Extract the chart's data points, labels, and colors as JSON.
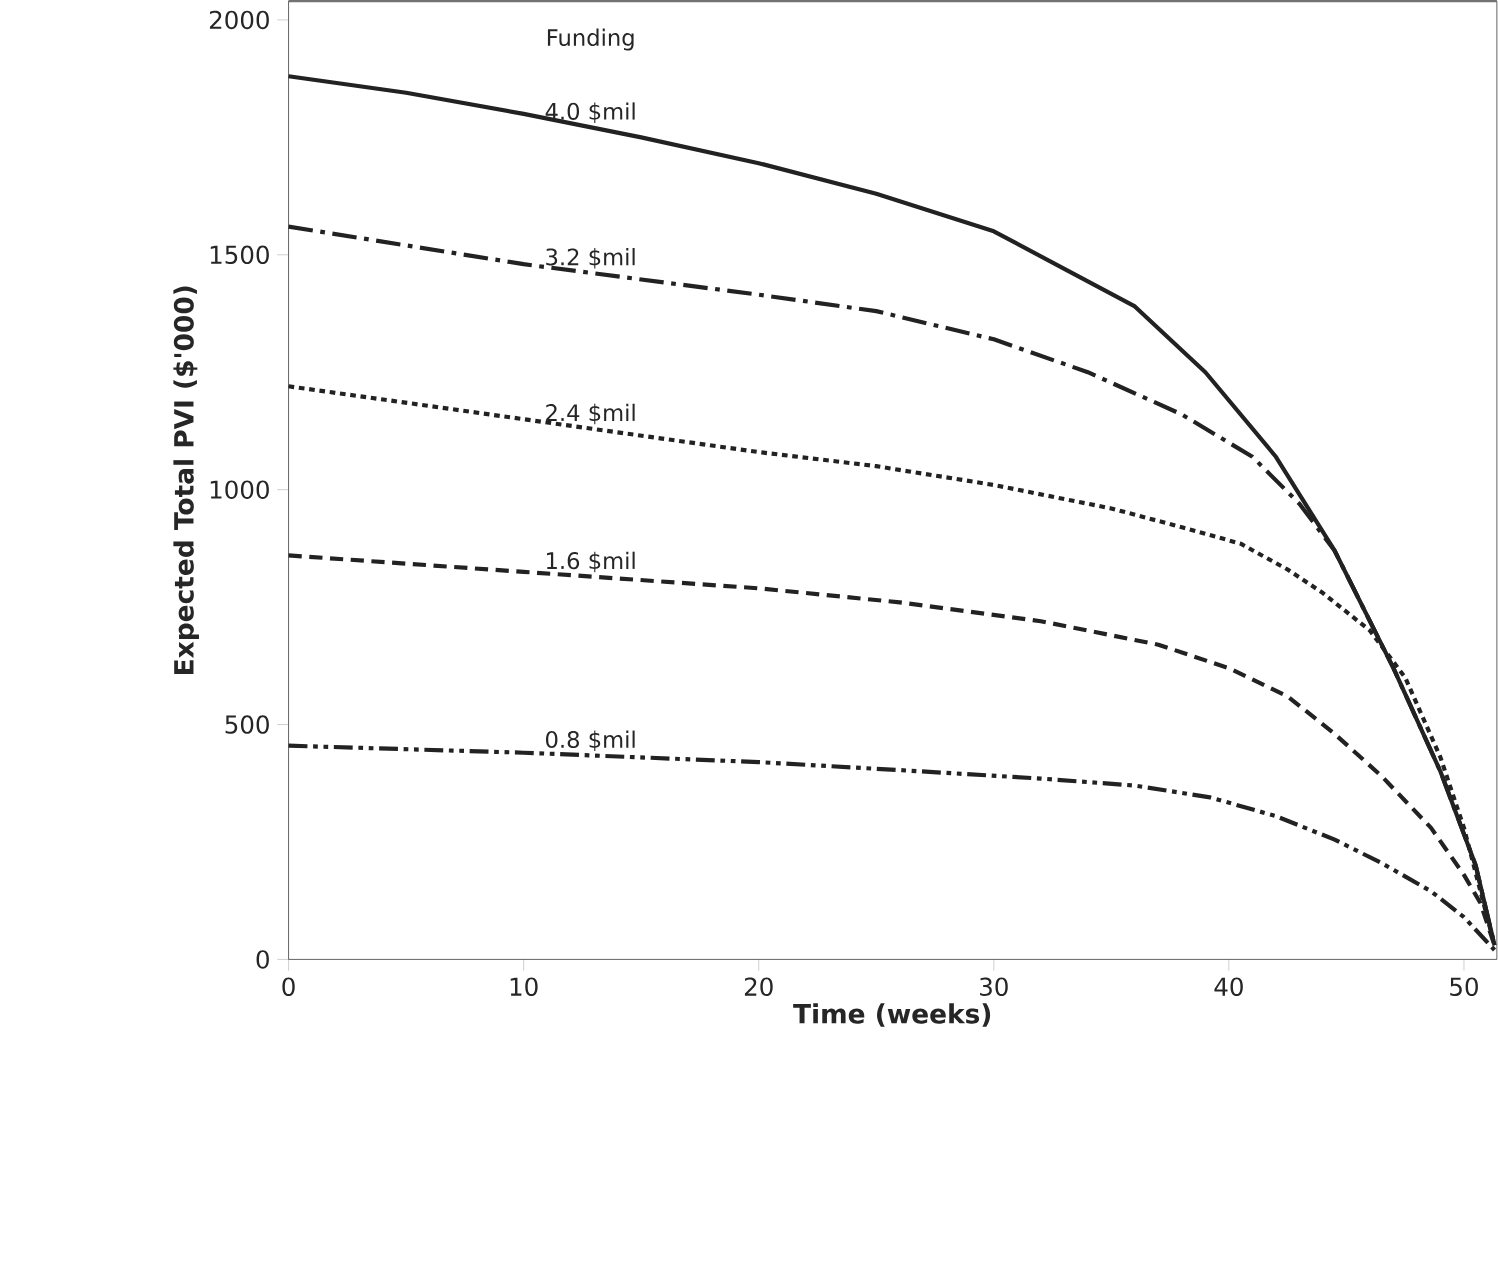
{
  "chart_data": {
    "type": "line",
    "xlabel": "Time (weeks)",
    "ylabel": "Expected Total PVI ($'000)",
    "legend_title": "Funding",
    "xlim": [
      0,
      51.4
    ],
    "ylim": [
      0,
      2040
    ],
    "xticks": [
      0,
      10,
      20,
      30,
      40,
      50
    ],
    "yticks": [
      0,
      500,
      1000,
      1500,
      2000
    ],
    "series": [
      {
        "name": "4.0 $mil",
        "color": "#222222",
        "line_style": "solid",
        "x": [
          0,
          5,
          10,
          15,
          20,
          25,
          30,
          33,
          36,
          39,
          42,
          44.5,
          47,
          49,
          50.5,
          51.3
        ],
        "values": [
          1880,
          1845,
          1800,
          1750,
          1695,
          1630,
          1550,
          1470,
          1390,
          1250,
          1070,
          870,
          620,
          400,
          200,
          30
        ]
      },
      {
        "name": "3.2 $mil",
        "color": "#222222",
        "line_style": "dashdot",
        "x": [
          0,
          10,
          20,
          25,
          30,
          34,
          38,
          41,
          43,
          44.5,
          47,
          49,
          50.5,
          51.3
        ],
        "values": [
          1560,
          1480,
          1415,
          1380,
          1320,
          1250,
          1160,
          1070,
          970,
          870,
          620,
          400,
          200,
          30
        ]
      },
      {
        "name": "2.4 $mil",
        "color": "#222222",
        "line_style": "dotted",
        "x": [
          0,
          10,
          20,
          25,
          30,
          35,
          38,
          40.5,
          42.5,
          44,
          46,
          47.5,
          49,
          50,
          51.3
        ],
        "values": [
          1220,
          1150,
          1080,
          1050,
          1010,
          960,
          920,
          885,
          830,
          780,
          700,
          600,
          430,
          280,
          30
        ]
      },
      {
        "name": "1.6 $mil",
        "color": "#222222",
        "line_style": "dashed",
        "x": [
          0,
          10,
          20,
          26,
          32,
          37,
          40,
          42.5,
          44.5,
          46.5,
          48.6,
          50,
          50.7,
          51.3
        ],
        "values": [
          860,
          825,
          790,
          760,
          720,
          670,
          620,
          560,
          480,
          390,
          280,
          180,
          120,
          30
        ]
      },
      {
        "name": "0.8 $mil",
        "color": "#222222",
        "line_style": "dashdotdot",
        "x": [
          0,
          10,
          20,
          26,
          32,
          36,
          39.2,
          42,
          44.5,
          46.5,
          48.6,
          50,
          51.3
        ],
        "values": [
          455,
          440,
          420,
          403,
          385,
          370,
          345,
          305,
          255,
          205,
          145,
          90,
          20
        ]
      }
    ]
  }
}
